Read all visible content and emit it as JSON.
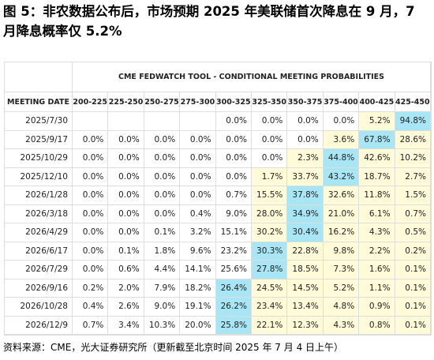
{
  "title": "图 5：非农数据公布后，市场预期 2025 年美联储首次降息在 9 月，7 月降息概率仅 5.2%",
  "table": {
    "banner": "CME FEDWATCH TOOL - CONDITIONAL MEETING PROBABILITIES",
    "header": [
      "MEETING DATE",
      "200-225",
      "225-250",
      "250-275",
      "275-300",
      "300-325",
      "325-350",
      "350-375",
      "375-400",
      "400-425",
      "425-450"
    ],
    "max_color": "#a9e6f5",
    "highlight_color": "#fffbd8",
    "rows": [
      [
        "2025/7/30",
        null,
        null,
        null,
        null,
        "0.0%",
        "0.0%",
        "0.0%",
        "0.0%",
        "5.2%",
        "94.8%"
      ],
      [
        "2025/9/17",
        "0.0%",
        "0.0%",
        "0.0%",
        "0.0%",
        "0.0%",
        "0.0%",
        "0.0%",
        "3.6%",
        "67.8%",
        "28.6%"
      ],
      [
        "2025/10/29",
        "0.0%",
        "0.0%",
        "0.0%",
        "0.0%",
        "0.0%",
        "0.0%",
        "2.3%",
        "44.8%",
        "42.6%",
        "10.2%"
      ],
      [
        "2025/12/10",
        "0.0%",
        "0.0%",
        "0.0%",
        "0.0%",
        "0.0%",
        "1.7%",
        "33.7%",
        "43.2%",
        "18.7%",
        "2.7%"
      ],
      [
        "2026/1/28",
        "0.0%",
        "0.0%",
        "0.0%",
        "0.0%",
        "0.7%",
        "15.5%",
        "37.8%",
        "32.6%",
        "11.8%",
        "1.5%"
      ],
      [
        "2026/3/18",
        "0.0%",
        "0.0%",
        "0.0%",
        "0.4%",
        "9.0%",
        "28.0%",
        "34.9%",
        "21.0%",
        "6.1%",
        "0.7%"
      ],
      [
        "2026/4/29",
        "0.0%",
        "0.0%",
        "0.1%",
        "3.2%",
        "15.1%",
        "30.2%",
        "30.4%",
        "16.2%",
        "4.3%",
        "0.5%"
      ],
      [
        "2026/6/17",
        "0.0%",
        "0.1%",
        "1.8%",
        "9.6%",
        "23.2%",
        "30.3%",
        "22.8%",
        "9.8%",
        "2.2%",
        "0.2%"
      ],
      [
        "2026/7/29",
        "0.0%",
        "0.6%",
        "4.4%",
        "14.1%",
        "25.6%",
        "27.8%",
        "18.5%",
        "7.3%",
        "1.6%",
        "0.1%"
      ],
      [
        "2026/9/16",
        "0.2%",
        "2.0%",
        "7.9%",
        "18.2%",
        "26.4%",
        "24.5%",
        "14.5%",
        "5.2%",
        "1.1%",
        "0.1%"
      ],
      [
        "2026/10/28",
        "0.4%",
        "2.6%",
        "9.0%",
        "19.1%",
        "26.2%",
        "23.4%",
        "13.4%",
        "4.8%",
        "0.9%",
        "0.1%"
      ],
      [
        "2026/12/9",
        "0.7%",
        "3.4%",
        "10.3%",
        "20.0%",
        "25.8%",
        "22.1%",
        "12.3%",
        "4.3%",
        "0.8%",
        "0.1%"
      ]
    ]
  },
  "source": "资料来源：CME，光大证券研究所（更新截至北京时间 2025 年 7 月 4 日上午）"
}
